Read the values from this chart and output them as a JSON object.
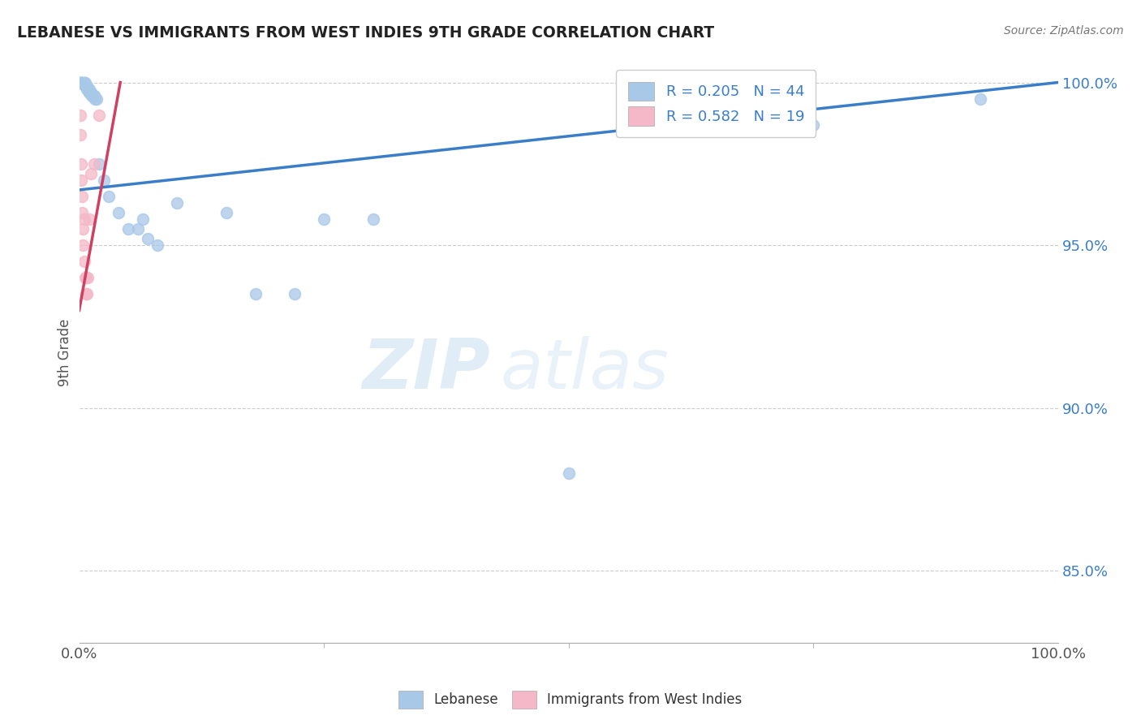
{
  "title": "LEBANESE VS IMMIGRANTS FROM WEST INDIES 9TH GRADE CORRELATION CHART",
  "source": "Source: ZipAtlas.com",
  "ylabel": "9th Grade",
  "legend_blue_r": "R = 0.205",
  "legend_blue_n": "N = 44",
  "legend_pink_r": "R = 0.582",
  "legend_pink_n": "N = 19",
  "blue_color": "#a8c8e8",
  "pink_color": "#f4b8c8",
  "trendline_blue": "#3a7dc9",
  "trendline_pink": "#d04060",
  "watermark_zip": "ZIP",
  "watermark_atlas": "atlas",
  "grid_color": "#cccccc",
  "bg_color": "#ffffff",
  "marker_size": 100,
  "blue_scatter_x": [
    0.001,
    0.001,
    0.001,
    0.002,
    0.002,
    0.003,
    0.003,
    0.004,
    0.005,
    0.005,
    0.006,
    0.006,
    0.007,
    0.008,
    0.008,
    0.009,
    0.01,
    0.01,
    0.01,
    0.012,
    0.012,
    0.013,
    0.015,
    0.015,
    0.016,
    0.018,
    0.02,
    0.025,
    0.03,
    0.04,
    0.05,
    0.06,
    0.065,
    0.07,
    0.08,
    0.1,
    0.15,
    0.18,
    0.22,
    0.25,
    0.3,
    0.5,
    0.75,
    0.92
  ],
  "blue_scatter_y": [
    1.0,
    1.0,
    1.0,
    1.0,
    1.0,
    1.0,
    1.0,
    1.0,
    1.0,
    1.0,
    1.0,
    0.999,
    0.999,
    0.999,
    0.998,
    0.998,
    0.998,
    0.997,
    0.997,
    0.997,
    0.997,
    0.996,
    0.996,
    0.996,
    0.995,
    0.995,
    0.975,
    0.97,
    0.965,
    0.96,
    0.955,
    0.955,
    0.958,
    0.952,
    0.95,
    0.963,
    0.96,
    0.935,
    0.935,
    0.958,
    0.958,
    0.88,
    0.987,
    0.995
  ],
  "pink_scatter_x": [
    0.001,
    0.001,
    0.002,
    0.002,
    0.003,
    0.003,
    0.004,
    0.004,
    0.005,
    0.005,
    0.006,
    0.007,
    0.007,
    0.008,
    0.009,
    0.01,
    0.012,
    0.015,
    0.02
  ],
  "pink_scatter_y": [
    0.99,
    0.984,
    0.975,
    0.97,
    0.965,
    0.96,
    0.955,
    0.95,
    0.958,
    0.945,
    0.94,
    0.935,
    0.94,
    0.935,
    0.94,
    0.958,
    0.972,
    0.975,
    0.99
  ],
  "xlim": [
    0.0,
    1.0
  ],
  "ylim": [
    0.828,
    1.006
  ],
  "yticks": [
    1.0,
    0.95,
    0.9,
    0.85
  ],
  "ytick_labels": [
    "100.0%",
    "95.0%",
    "90.0%",
    "85.0%"
  ],
  "blue_trendline_x": [
    0.0,
    1.0
  ],
  "blue_trendline_y": [
    0.967,
    1.0
  ],
  "pink_trendline_x": [
    0.0,
    0.042
  ],
  "pink_trendline_y": [
    0.93,
    1.0
  ]
}
